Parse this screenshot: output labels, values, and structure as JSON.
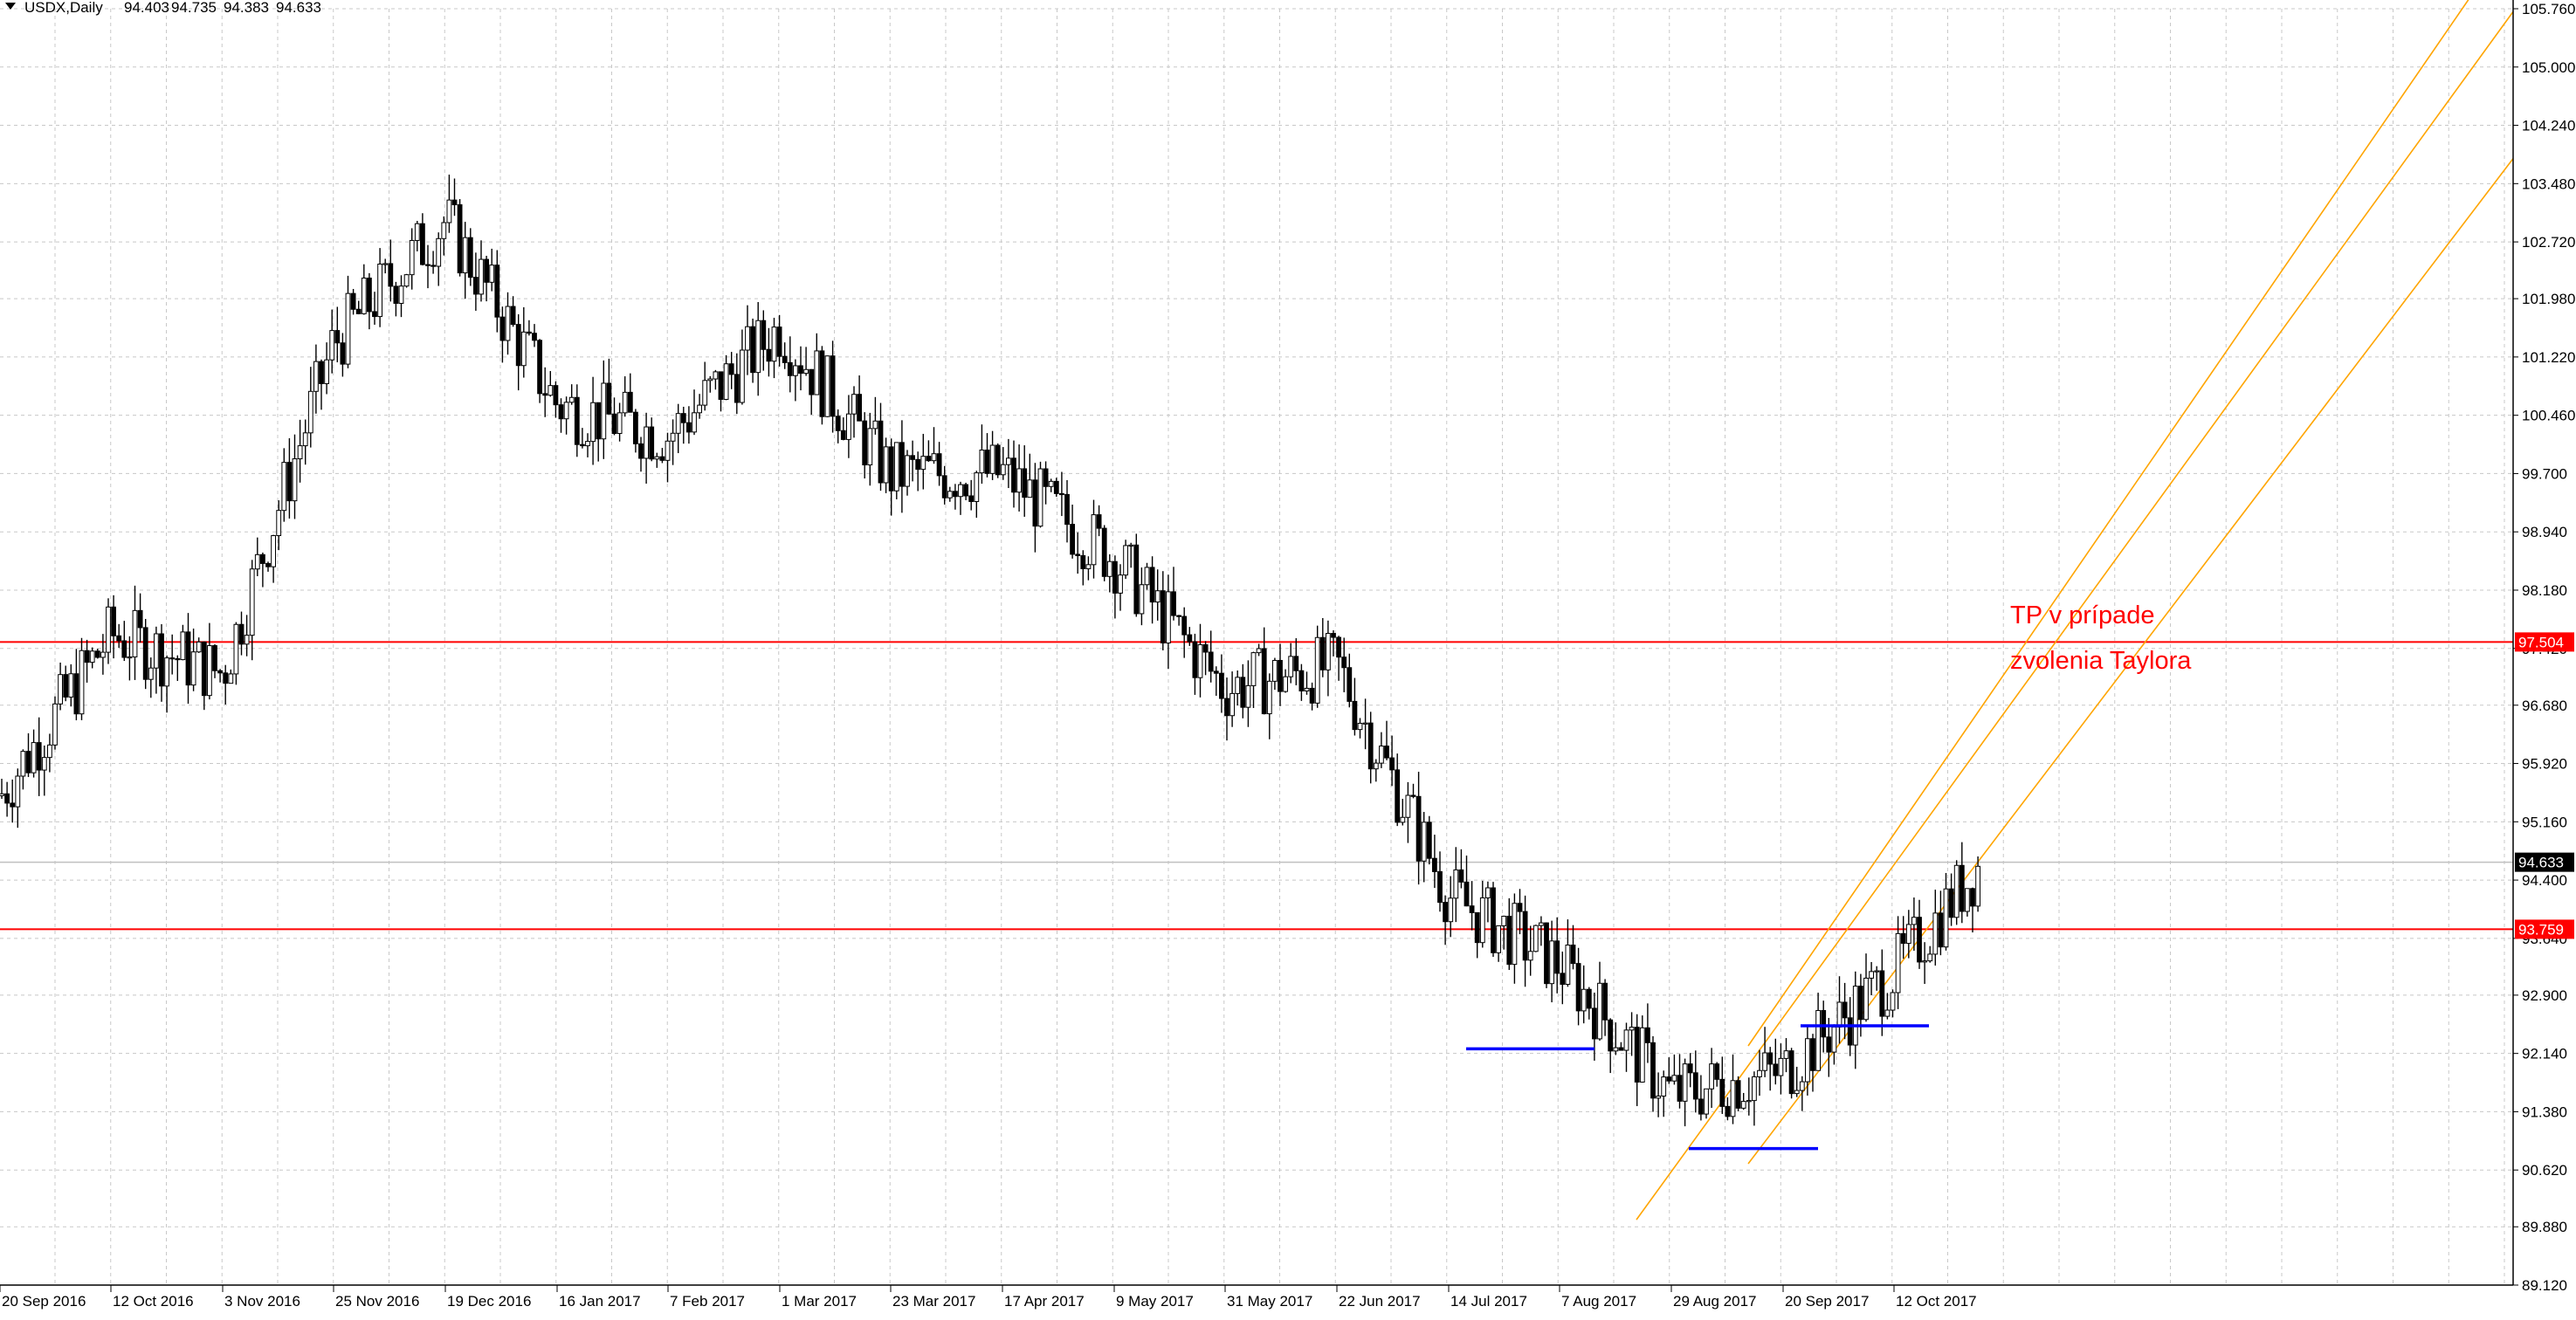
{
  "header": {
    "symbol": "USDX,Daily",
    "open": "94.403",
    "high": "94.735",
    "low": "94.383",
    "close": "94.633"
  },
  "colors": {
    "background": "#ffffff",
    "grid": "#c8c8c8",
    "candle": "#000000",
    "horizontal_level": "#ff0000",
    "channel": "#ffa500",
    "support": "#0000ff",
    "current_price_line": "#c0c0c0",
    "annotation": "#ff0000"
  },
  "annotation": {
    "line1": "TP v prípade",
    "line2": "zvolenia Taylora"
  },
  "chart_data": {
    "type": "candlestick",
    "title": "USDX,Daily",
    "ylim": [
      89.12,
      105.76
    ],
    "grid": true,
    "y_ticks": [
      "105.760",
      "105.000",
      "104.240",
      "103.480",
      "102.720",
      "101.980",
      "101.220",
      "100.460",
      "99.700",
      "98.940",
      "98.180",
      "97.420",
      "96.680",
      "95.920",
      "95.160",
      "94.400",
      "93.640",
      "92.900",
      "92.140",
      "91.380",
      "90.620",
      "89.880",
      "89.120"
    ],
    "x_ticks": [
      "20 Sep 2016",
      "12 Oct 2016",
      "3 Nov 2016",
      "25 Nov 2016",
      "19 Dec 2016",
      "16 Jan 2017",
      "7 Feb 2017",
      "1 Mar 2017",
      "23 Mar 2017",
      "17 Apr 2017",
      "9 May 2017",
      "31 May 2017",
      "22 Jun 2017",
      "14 Jul 2017",
      "7 Aug 2017",
      "29 Aug 2017",
      "20 Sep 2017",
      "12 Oct 2017"
    ],
    "price_tags": [
      {
        "label": "97.504",
        "value": 97.504,
        "kind": "level"
      },
      {
        "label": "94.633",
        "value": 94.633,
        "kind": "current"
      },
      {
        "label": "93.759",
        "value": 93.759,
        "kind": "level"
      }
    ],
    "horizontal_levels": [
      97.504,
      93.759
    ],
    "current_price": 94.633,
    "support_lines": [
      {
        "from": "14 Jul 2017",
        "to": "7 Aug 2017",
        "value": 92.2
      },
      {
        "from": "29 Aug 2017",
        "to": "20 Sep 2017",
        "value": 90.9
      },
      {
        "from": "20 Sep 2017",
        "to": "12 Oct 2017",
        "value": 92.5
      }
    ],
    "channel_lines": [
      {
        "from": {
          "x": "20 Sep 2017",
          "y": 92.9
        },
        "to": {
          "x": "12 Oct 2017",
          "y": 95.0
        }
      },
      {
        "from": {
          "x": "29 Aug 2017",
          "y": 90.6
        },
        "to": {
          "x": "12 Oct 2017",
          "y": 94.6
        }
      },
      {
        "from": {
          "x": "20 Sep 2017",
          "y": 91.3
        },
        "to": {
          "x": "12 Oct 2017",
          "y": 93.2
        }
      }
    ],
    "close_path": [
      [
        "20 Sep 2016",
        95.5
      ],
      [
        "12 Oct 2016",
        97.6
      ],
      [
        "3 Nov 2016",
        97.1
      ],
      [
        "25 Nov 2016",
        101.4
      ],
      [
        "19 Dec 2016",
        103.0
      ],
      [
        "16 Jan 2017",
        100.6
      ],
      [
        "7 Feb 2017",
        100.2
      ],
      [
        "1 Mar 2017",
        101.6
      ],
      [
        "23 Mar 2017",
        99.7
      ],
      [
        "17 Apr 2017",
        99.7
      ],
      [
        "9 May 2017",
        98.6
      ],
      [
        "31 May 2017",
        96.9
      ],
      [
        "22 Jun 2017",
        97.2
      ],
      [
        "14 Jul 2017",
        94.2
      ],
      [
        "7 Aug 2017",
        93.3
      ],
      [
        "29 Aug 2017",
        91.6
      ],
      [
        "20 Sep 2017",
        91.9
      ],
      [
        "12 Oct 2017",
        93.2
      ],
      [
        "12 Oct 2017",
        94.633
      ]
    ]
  }
}
